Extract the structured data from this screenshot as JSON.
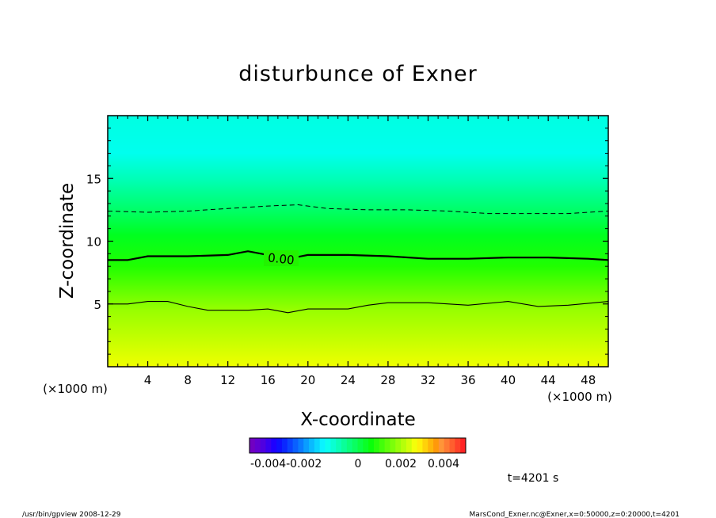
{
  "chart_data": {
    "type": "heatmap",
    "title": "disturbunce of Exner",
    "xlabel": "X-coordinate",
    "ylabel": "Z-coordinate",
    "x_unit_label": "(×1000 m)",
    "y_unit_label": "(×1000 m)",
    "xlim": [
      0,
      50
    ],
    "ylim": [
      0,
      20
    ],
    "x_ticks": [
      4,
      8,
      12,
      16,
      20,
      24,
      28,
      32,
      36,
      40,
      44,
      48
    ],
    "y_ticks": [
      5,
      10,
      15
    ],
    "contour_label": "0.00",
    "contours": [
      {
        "style": "dashed",
        "level": "negative",
        "points": [
          [
            0,
            12.4
          ],
          [
            4,
            12.3
          ],
          [
            8,
            12.4
          ],
          [
            12,
            12.6
          ],
          [
            16,
            12.8
          ],
          [
            19,
            12.9
          ],
          [
            22,
            12.6
          ],
          [
            26,
            12.5
          ],
          [
            30,
            12.5
          ],
          [
            34,
            12.4
          ],
          [
            38,
            12.2
          ],
          [
            42,
            12.2
          ],
          [
            46,
            12.2
          ],
          [
            50,
            12.4
          ]
        ]
      },
      {
        "style": "solid-thick",
        "level": "0.00",
        "points": [
          [
            0,
            8.5
          ],
          [
            2,
            8.5
          ],
          [
            4,
            8.8
          ],
          [
            8,
            8.8
          ],
          [
            12,
            8.9
          ],
          [
            14,
            9.2
          ],
          [
            16,
            8.9
          ],
          [
            18,
            8.6
          ],
          [
            20,
            8.9
          ],
          [
            24,
            8.9
          ],
          [
            28,
            8.8
          ],
          [
            32,
            8.6
          ],
          [
            36,
            8.6
          ],
          [
            40,
            8.7
          ],
          [
            44,
            8.7
          ],
          [
            48,
            8.6
          ],
          [
            50,
            8.5
          ]
        ]
      },
      {
        "style": "solid-thin",
        "level": "positive",
        "points": [
          [
            0,
            5.0
          ],
          [
            2,
            5.0
          ],
          [
            4,
            5.2
          ],
          [
            6,
            5.2
          ],
          [
            8,
            4.8
          ],
          [
            10,
            4.5
          ],
          [
            14,
            4.5
          ],
          [
            16,
            4.6
          ],
          [
            18,
            4.3
          ],
          [
            20,
            4.6
          ],
          [
            24,
            4.6
          ],
          [
            26,
            4.9
          ],
          [
            28,
            5.1
          ],
          [
            32,
            5.1
          ],
          [
            36,
            4.9
          ],
          [
            40,
            5.2
          ],
          [
            43,
            4.8
          ],
          [
            46,
            4.9
          ],
          [
            50,
            5.2
          ]
        ]
      }
    ],
    "field_profile": [
      {
        "z": 0,
        "color": "#f0ff00"
      },
      {
        "z": 2,
        "color": "#c8ff00"
      },
      {
        "z": 4.5,
        "color": "#98ff00"
      },
      {
        "z": 8,
        "color": "#20ff00"
      },
      {
        "z": 10.5,
        "color": "#00ff20"
      },
      {
        "z": 12.5,
        "color": "#00ff68"
      },
      {
        "z": 15,
        "color": "#00ffb8"
      },
      {
        "z": 17,
        "color": "#00ffee"
      },
      {
        "z": 20,
        "color": "#00ffe2"
      }
    ],
    "colorbar": {
      "min": -0.005,
      "max": 0.005,
      "steps": 40,
      "tick_labels": [
        "-0.004-0.002",
        "0",
        "0.002",
        "0.004"
      ]
    }
  },
  "annotations": {
    "time": "t=4201 s",
    "footer_left": "/usr/bin/gpview   2008-12-29",
    "footer_right": "MarsCond_Exner.nc@Exner,x=0:50000,z=0:20000,t=4201"
  }
}
